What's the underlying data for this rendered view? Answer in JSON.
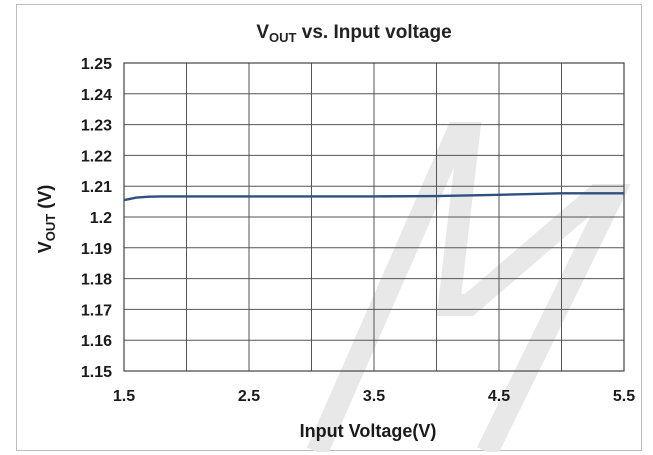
{
  "chart_data": {
    "type": "line",
    "title": "VOUT vs. Input voltage",
    "title_parts": {
      "main": "V",
      "sub": "OUT",
      "rest": " vs.  Input voltage"
    },
    "xlabel": "Input Voltage(V)",
    "ylabel": "VOUT (V)",
    "ylabel_parts": {
      "main": "V",
      "sub": "OUT",
      "rest": " (V)"
    },
    "xlim": [
      1.5,
      5.5
    ],
    "ylim": [
      1.15,
      1.25
    ],
    "x_ticks": [
      1.5,
      2.5,
      3.5,
      4.5,
      5.5
    ],
    "x_tick_labels": [
      "1.5",
      "2.5",
      "3.5",
      "4.5",
      "5.5"
    ],
    "y_ticks": [
      1.15,
      1.16,
      1.17,
      1.18,
      1.19,
      1.2,
      1.21,
      1.22,
      1.23,
      1.24,
      1.25
    ],
    "y_tick_labels": [
      "1.15",
      "1.16",
      "1.17",
      "1.18",
      "1.19",
      "1.2",
      "1.21",
      "1.22",
      "1.23",
      "1.24",
      "1.25"
    ],
    "x_grid_step": 0.5,
    "grid": true,
    "series": [
      {
        "color": "#2f4f7f",
        "x": [
          1.5,
          1.6,
          1.7,
          1.8,
          2.0,
          2.5,
          3.0,
          3.5,
          4.0,
          4.5,
          5.0,
          5.5
        ],
        "y": [
          1.2055,
          1.2063,
          1.2066,
          1.2067,
          1.2067,
          1.2067,
          1.2067,
          1.2067,
          1.2068,
          1.2072,
          1.2077,
          1.2077
        ]
      }
    ],
    "watermark_color": "#e8e8e8"
  }
}
